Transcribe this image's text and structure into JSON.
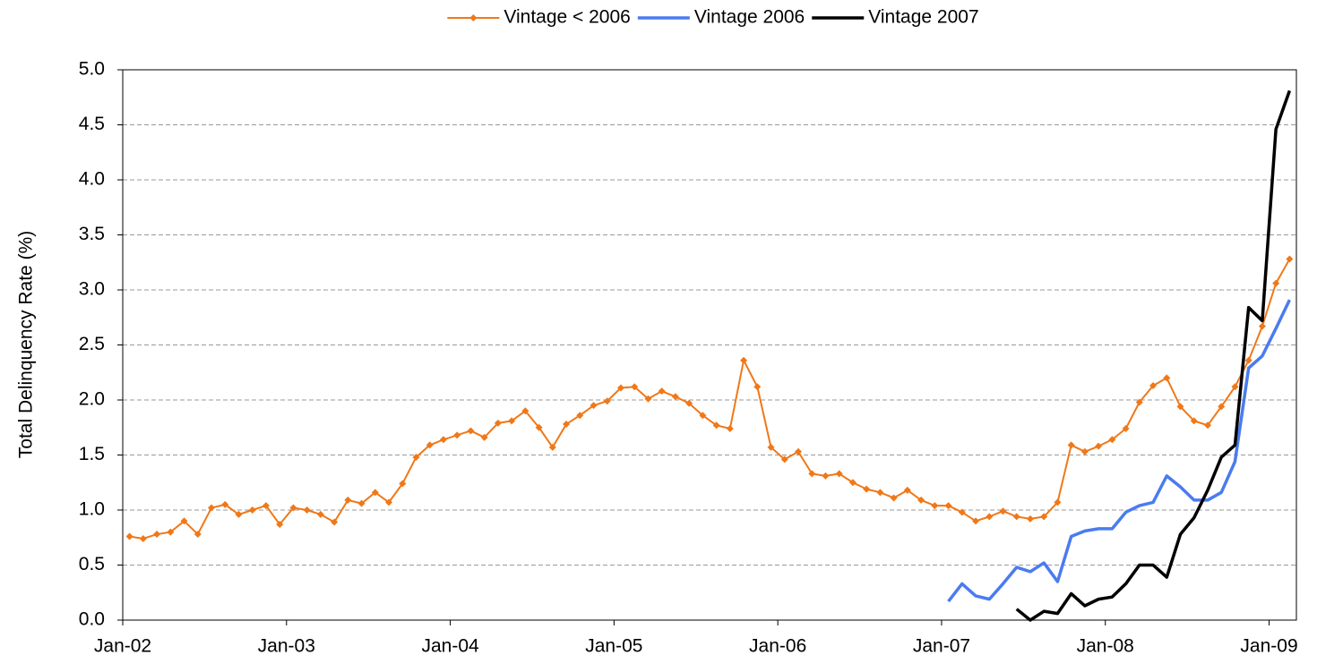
{
  "chart_data": {
    "type": "line",
    "ylabel": "Total Delinquency Rate (%)",
    "x": [
      "2002-01",
      "2002-02",
      "2002-03",
      "2002-04",
      "2002-05",
      "2002-06",
      "2002-07",
      "2002-08",
      "2002-09",
      "2002-10",
      "2002-11",
      "2002-12",
      "2003-01",
      "2003-02",
      "2003-03",
      "2003-04",
      "2003-05",
      "2003-06",
      "2003-07",
      "2003-08",
      "2003-09",
      "2003-10",
      "2003-11",
      "2003-12",
      "2004-01",
      "2004-02",
      "2004-03",
      "2004-04",
      "2004-05",
      "2004-06",
      "2004-07",
      "2004-08",
      "2004-09",
      "2004-10",
      "2004-11",
      "2004-12",
      "2005-01",
      "2005-02",
      "2005-03",
      "2005-04",
      "2005-05",
      "2005-06",
      "2005-07",
      "2005-08",
      "2005-09",
      "2005-10",
      "2005-11",
      "2005-12",
      "2006-01",
      "2006-02",
      "2006-03",
      "2006-04",
      "2006-05",
      "2006-06",
      "2006-07",
      "2006-08",
      "2006-09",
      "2006-10",
      "2006-11",
      "2006-12",
      "2007-01",
      "2007-02",
      "2007-03",
      "2007-04",
      "2007-05",
      "2007-06",
      "2007-07",
      "2007-08",
      "2007-09",
      "2007-10",
      "2007-11",
      "2007-12",
      "2008-01",
      "2008-02",
      "2008-03",
      "2008-04",
      "2008-05",
      "2008-06",
      "2008-07",
      "2008-08",
      "2008-09",
      "2008-10",
      "2008-11",
      "2008-12",
      "2009-01",
      "2009-02"
    ],
    "series": [
      {
        "name": "Vintage < 2006",
        "color": "#f07818",
        "marker": "diamond",
        "values": [
          0.76,
          0.74,
          0.78,
          0.8,
          0.9,
          0.78,
          1.02,
          1.05,
          0.96,
          1.0,
          1.04,
          0.87,
          1.02,
          1.0,
          0.96,
          0.89,
          1.09,
          1.06,
          1.16,
          1.07,
          1.24,
          1.48,
          1.59,
          1.64,
          1.68,
          1.72,
          1.66,
          1.79,
          1.81,
          1.9,
          1.75,
          1.57,
          1.78,
          1.86,
          1.95,
          1.99,
          2.11,
          2.12,
          2.01,
          2.08,
          2.03,
          1.97,
          1.86,
          1.77,
          1.74,
          2.36,
          2.12,
          1.57,
          1.46,
          1.53,
          1.33,
          1.31,
          1.33,
          1.25,
          1.19,
          1.16,
          1.11,
          1.18,
          1.09,
          1.04,
          1.04,
          0.98,
          0.9,
          0.94,
          0.99,
          0.94,
          0.92,
          0.94,
          1.07,
          1.59,
          1.53,
          1.58,
          1.64,
          1.74,
          1.98,
          2.13,
          2.2,
          1.94,
          1.81,
          1.77,
          1.94,
          2.12,
          2.36,
          2.67,
          3.06,
          3.28
        ]
      },
      {
        "name": "Vintage 2006",
        "color": "#4a7bf0",
        "values": [
          null,
          null,
          null,
          null,
          null,
          null,
          null,
          null,
          null,
          null,
          null,
          null,
          null,
          null,
          null,
          null,
          null,
          null,
          null,
          null,
          null,
          null,
          null,
          null,
          null,
          null,
          null,
          null,
          null,
          null,
          null,
          null,
          null,
          null,
          null,
          null,
          null,
          null,
          null,
          null,
          null,
          null,
          null,
          null,
          null,
          null,
          null,
          null,
          null,
          null,
          null,
          null,
          null,
          null,
          null,
          null,
          null,
          null,
          null,
          null,
          0.17,
          0.33,
          0.22,
          0.19,
          0.33,
          0.48,
          0.44,
          0.52,
          0.35,
          0.76,
          0.81,
          0.83,
          0.83,
          0.98,
          1.04,
          1.07,
          1.31,
          1.21,
          1.09,
          1.09,
          1.16,
          1.44,
          2.29,
          2.4,
          2.65,
          2.91
        ]
      },
      {
        "name": "Vintage 2007",
        "color": "#000000",
        "values": [
          null,
          null,
          null,
          null,
          null,
          null,
          null,
          null,
          null,
          null,
          null,
          null,
          null,
          null,
          null,
          null,
          null,
          null,
          null,
          null,
          null,
          null,
          null,
          null,
          null,
          null,
          null,
          null,
          null,
          null,
          null,
          null,
          null,
          null,
          null,
          null,
          null,
          null,
          null,
          null,
          null,
          null,
          null,
          null,
          null,
          null,
          null,
          null,
          null,
          null,
          null,
          null,
          null,
          null,
          null,
          null,
          null,
          null,
          null,
          null,
          null,
          null,
          null,
          null,
          null,
          0.1,
          0.0,
          0.08,
          0.06,
          0.24,
          0.13,
          0.19,
          0.21,
          0.33,
          0.5,
          0.5,
          0.39,
          0.78,
          0.93,
          1.18,
          1.48,
          1.59,
          2.84,
          2.72,
          4.46,
          4.81
        ]
      }
    ],
    "xlim": [
      "2002-01",
      "2009-03"
    ],
    "xticks": [
      {
        "value": "2002-01",
        "label": "Jan-02"
      },
      {
        "value": "2003-01",
        "label": "Jan-03"
      },
      {
        "value": "2004-01",
        "label": "Jan-04"
      },
      {
        "value": "2005-01",
        "label": "Jan-05"
      },
      {
        "value": "2006-01",
        "label": "Jan-06"
      },
      {
        "value": "2007-01",
        "label": "Jan-07"
      },
      {
        "value": "2008-01",
        "label": "Jan-08"
      },
      {
        "value": "2009-01",
        "label": "Jan-09"
      }
    ],
    "ylim": [
      0,
      5
    ],
    "yticks": [
      {
        "value": 0,
        "label": "0.0"
      },
      {
        "value": 0.5,
        "label": "0.5"
      },
      {
        "value": 1,
        "label": "1.0"
      },
      {
        "value": 1.5,
        "label": "1.5"
      },
      {
        "value": 2,
        "label": "2.0"
      },
      {
        "value": 2.5,
        "label": "2.5"
      },
      {
        "value": 3,
        "label": "3.0"
      },
      {
        "value": 3.5,
        "label": "3.5"
      },
      {
        "value": 4,
        "label": "4.0"
      },
      {
        "value": 4.5,
        "label": "4.5"
      },
      {
        "value": 5,
        "label": "5.0"
      }
    ],
    "grid": true,
    "legend": "top"
  }
}
